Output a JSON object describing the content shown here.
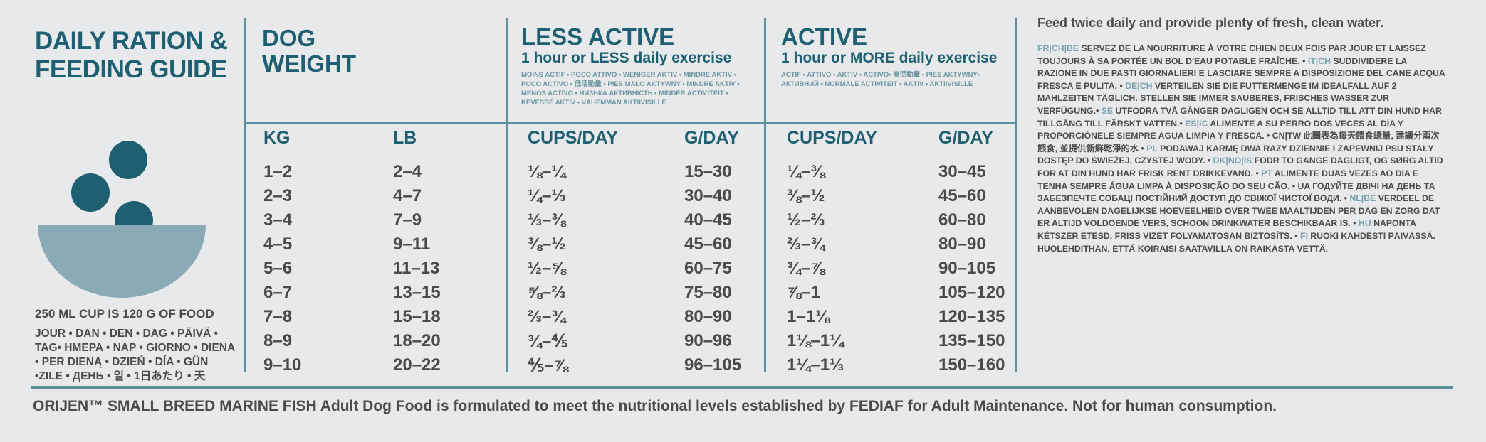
{
  "left": {
    "title": [
      "DAILY RATION &",
      "FEEDING GUIDE"
    ],
    "cup_note": "250 ML CUP IS 120 G OF FOOD",
    "languages": [
      "JOUR • DAN • DEN • DAG • PÄIVÄ •",
      "TAG• HMEPA • NAP • GIORNO • DIENA",
      "• PER DIENĄ • DZIEŃ • DÍA • GÜN",
      "•ZILE • ДЕНЬ • 일 • 1日あたり • 天"
    ]
  },
  "table": {
    "groups": [
      {
        "title": [
          "DOG",
          "WEIGHT"
        ]
      },
      {
        "title": [
          "LESS ACTIVE"
        ],
        "subtitle": "1 hour or LESS daily exercise",
        "translations": "MOINS ACTIF • POCO ATTIVO • WENIGER AKTIV • MINDRE AKTIV • POCO ACTIVO • 低活動量 • PIES MAŁO AKTYWNY • MINDRE AKTIV • MENOS ACTIVO • НИЗЬКА АКТИВНІСТЬ • MINDER ACTIVITEIT • KEVÉSBÉ AKTÍV • VÄHEMMÄN AKTIIVISILLE"
      },
      {
        "title": [
          "ACTIVE"
        ],
        "subtitle": "1 hour or MORE daily exercise",
        "translations": "ACTIF • ATTIVO • AKTIV • ACTIVO• 高活動量 • PIES AKTYWNY• АКТИВНИЙ • NORMALE ACTIVITEIT • AKTIV • AKTIIVISILLE"
      }
    ],
    "columns": [
      "KG",
      "LB",
      "CUPS/DAY",
      "G/DAY",
      "CUPS/DAY",
      "G/DAY"
    ],
    "rows": [
      [
        "1–2",
        "2–4",
        "⅛–¼",
        "15–30",
        "¼–⅜",
        "30–45"
      ],
      [
        "2–3",
        "4–7",
        "¼–⅓",
        "30–40",
        "⅜–½",
        "45–60"
      ],
      [
        "3–4",
        "7–9",
        "⅓–⅜",
        "40–45",
        "½–⅔",
        "60–80"
      ],
      [
        "4–5",
        "9–11",
        "⅜–½",
        "45–60",
        "⅔–¾",
        "80–90"
      ],
      [
        "5–6",
        "11–13",
        "½–⅝",
        "60–75",
        "¾–⅞",
        "90–105"
      ],
      [
        "6–7",
        "13–15",
        "⅝–⅔",
        "75–80",
        "⅞–1",
        "105–120"
      ],
      [
        "7–8",
        "15–18",
        "⅔–¾",
        "80–90",
        "1–1⅛",
        "120–135"
      ],
      [
        "8–9",
        "18–20",
        "¾–⅘",
        "90–96",
        "1⅛–1¼",
        "135–150"
      ],
      [
        "9–10",
        "20–22",
        "⅘–⅞",
        "96–105",
        "1¼–1⅓",
        "150–160"
      ]
    ]
  },
  "instructions": {
    "heading": "Feed twice daily and provide plenty of fresh, clean water.",
    "items": [
      {
        "code": "FR|CH|BE",
        "text": "SERVEZ DE LA NOURRITURE À VOTRE CHIEN DEUX FOIS PAR JOUR ET LAISSEZ TOUJOURS À SA PORTÉE UN BOL D'EAU POTABLE FRAÎCHE. •"
      },
      {
        "code": "IT|CH",
        "text": "SUDDIVIDERE LA RAZIONE IN DUE PASTI GIORNALIERI E LASCIARE SEMPRE A DISPOSIZIONE DEL CANE ACQUA FRESCA E PULITA. •"
      },
      {
        "code": "DE|CH",
        "text": "VERTEILEN SIE DIE FUTTERMENGE IM IDEALFALL AUF 2 MAHLZEITEN TÄGLICH. STELLEN SIE IMMER SAUBERES, FRISCHES WASSER ZUR VERFÜGUNG.•"
      },
      {
        "code": "SE",
        "text": "UTFODRA TVÅ GÅNGER DAGLIGEN OCH SE ALLTID TILL ATT DIN HUND HAR TILLGÅNG TILL FÄRSKT VATTEN.•"
      },
      {
        "code": "ES|IC",
        "text": "ALIMENTE A SU PERRO DOS VECES AL DÍA Y PROPORCIÓNELE SIEMPRE AGUA LIMPIA Y FRESCA. • CN|TW 此圖表為每天餵食總量, 建議分兩次餵食, 並提供新鮮乾淨的水 •"
      },
      {
        "code": "PL",
        "text": "PODAWAJ KARMĘ DWA RAZY DZIENNIE I ZAPEWNIJ PSU STAŁY DOSTĘP DO ŚWIEŻEJ, CZYSTEJ WODY. •"
      },
      {
        "code": "DK|NO|IS",
        "text": "FODR TO GANGE DAGLIGT, OG SØRG ALTID FOR AT DIN HUND HAR FRISK RENT DRIKKEVAND. •"
      },
      {
        "code": "PT",
        "text": "ALIMENTE DUAS VEZES AO DIA E TENHA SEMPRE ÁGUA LIMPA À DISPOSIÇÃO DO SEU CÃO. • UA ГОДУЙТЕ ДВІЧІ НА ДЕНЬ ТА ЗАБЕЗПЕЧТЕ СОБАЦІ ПОСТІЙНИЙ ДОСТУП ДО СВІЖОЇ ЧИСТОЇ ВОДИ. •"
      },
      {
        "code": "NL|BE",
        "text": "VERDEEL DE AANBEVOLEN DAGELIJKSE HOEVEELHEID OVER TWEE MAALTIJDEN PER DAG EN ZORG DAT ER ALTIJD VOLDOENDE VERS, SCHOON DRINKWATER BESCHIKBAAR IS. •"
      },
      {
        "code": "HU",
        "text": "NAPONTA KÉTSZER ETESD, FRISS VIZET FOLYAMATOSAN BIZTOSÍTS. •"
      },
      {
        "code": "FI",
        "text": "RUOKI KAHDESTI PÄIVÄSSÄ. HUOLEHDITHAN, ETTÄ KOIRAISI SAATAVILLA ON RAIKASTA VETTÄ."
      }
    ]
  },
  "footer": "ORIJEN™ SMALL BREED MARINE FISH Adult Dog Food is formulated to meet the nutritional levels established by FEDIAF for Adult Maintenance. Not for human consumption."
}
